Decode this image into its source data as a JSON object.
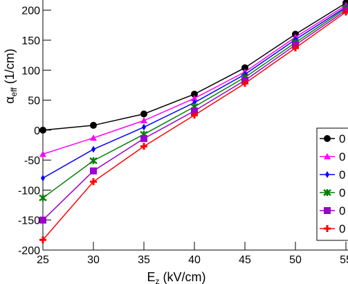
{
  "chart_data": {
    "type": "line",
    "x_label": {
      "main": "E",
      "sub": "z",
      "rest": " (kV/cm)"
    },
    "y_label": {
      "main": "α",
      "sub": "eff",
      "rest": " (1/cm)"
    },
    "x": [
      25,
      30,
      35,
      40,
      45,
      50,
      55
    ],
    "xlim": [
      25,
      55
    ],
    "xticks": [
      25,
      30,
      35,
      40,
      45,
      50,
      55
    ],
    "ylim": [
      -200,
      217
    ],
    "yticks": [
      -200,
      -150,
      -100,
      -50,
      0,
      50,
      100,
      150,
      200
    ],
    "series": [
      {
        "name": "0",
        "color": "#000000",
        "marker": "circle",
        "values": [
          0,
          8,
          27,
          60,
          104,
          160,
          212
        ]
      },
      {
        "name": "0",
        "color": "#ff00ff",
        "marker": "triangle",
        "values": [
          -40,
          -13,
          16,
          53,
          97,
          155,
          208
        ]
      },
      {
        "name": "0",
        "color": "#0000ff",
        "marker": "diamond",
        "values": [
          -80,
          -32,
          5,
          46,
          93,
          151,
          205
        ]
      },
      {
        "name": "0",
        "color": "#008000",
        "marker": "star",
        "values": [
          -113,
          -51,
          -7,
          39,
          88,
          146,
          203
        ]
      },
      {
        "name": "0",
        "color": "#9900cc",
        "marker": "square",
        "values": [
          -150,
          -68,
          -14,
          32,
          83,
          142,
          200
        ]
      },
      {
        "name": "0",
        "color": "#ff0000",
        "marker": "cross",
        "values": [
          -183,
          -86,
          -27,
          25,
          78,
          137,
          197
        ]
      }
    ],
    "legend": "right"
  }
}
